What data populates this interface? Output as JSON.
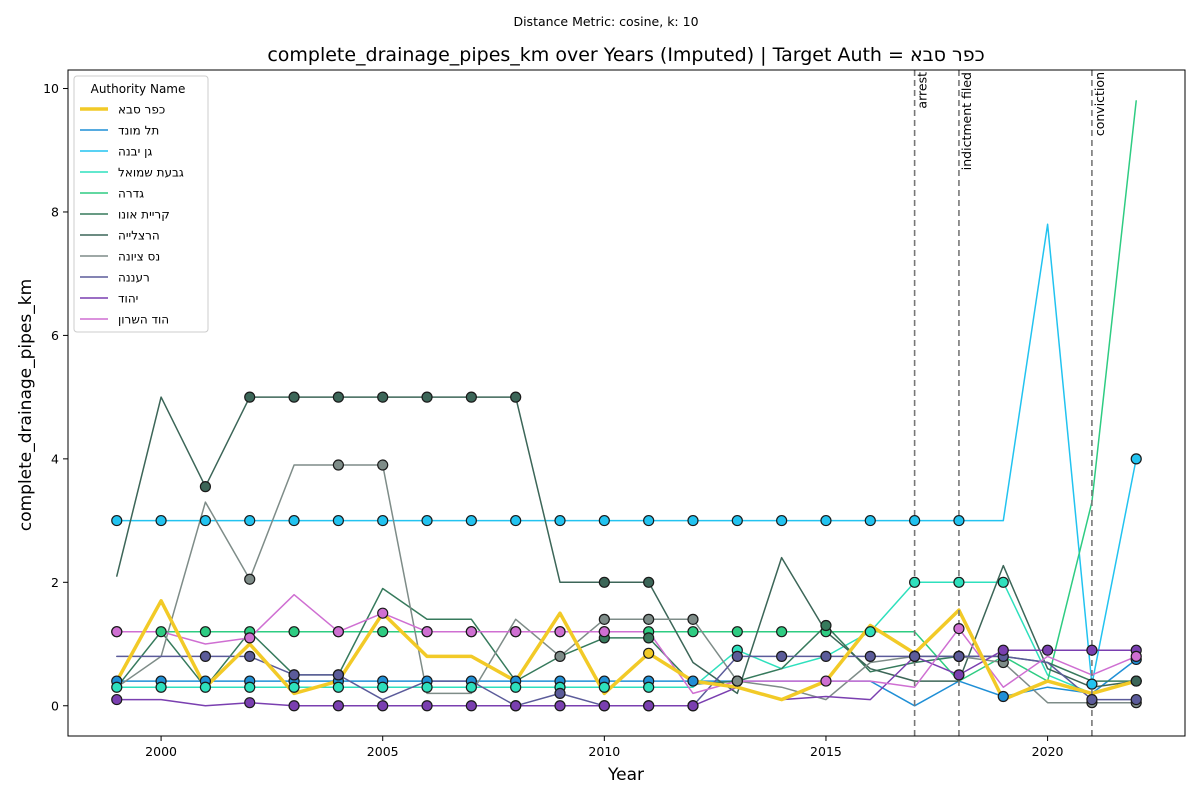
{
  "chart_data": {
    "type": "line",
    "suptitle": "Distance Metric: cosine, k: 10",
    "title": "complete_drainage_pipes_km over Years (Imputed) | Target Auth = כפר סבא",
    "xlabel": "Year",
    "ylabel": "complete_drainage_pipes_km",
    "xlim": [
      1997.9,
      2023.1
    ],
    "ylim": [
      -0.49,
      10.3
    ],
    "x_ticks": [
      2000,
      2005,
      2010,
      2015,
      2020
    ],
    "y_ticks": [
      0,
      2,
      4,
      6,
      8,
      10
    ],
    "grid": false,
    "legend": {
      "title": "Authority Name",
      "position": "top-left"
    },
    "x": [
      1999,
      2000,
      2001,
      2002,
      2003,
      2004,
      2005,
      2006,
      2007,
      2008,
      2009,
      2010,
      2011,
      2012,
      2013,
      2014,
      2015,
      2016,
      2017,
      2018,
      2019,
      2020,
      2021,
      2022
    ],
    "series": [
      {
        "name": "כפר סבא",
        "color": "#f2ca27",
        "width": 3.5,
        "target": true,
        "values": [
          0.4,
          1.7,
          0.3,
          1.0,
          0.2,
          0.4,
          1.5,
          0.8,
          0.8,
          0.4,
          1.5,
          0.2,
          0.85,
          0.4,
          0.3,
          0.1,
          0.4,
          1.3,
          0.85,
          1.55,
          0.1,
          0.4,
          0.2,
          0.4
        ],
        "imputed": [
          12
        ]
      },
      {
        "name": "תל מונד",
        "color": "#1f8fd6",
        "width": 1.5,
        "values": [
          0.4,
          0.4,
          0.4,
          0.4,
          0.4,
          0.4,
          0.4,
          0.4,
          0.4,
          0.4,
          0.4,
          0.4,
          0.4,
          0.4,
          0.4,
          0.4,
          0.4,
          0.4,
          0.0,
          0.4,
          0.15,
          0.3,
          0.2,
          0.75
        ],
        "imputed": [
          0,
          1,
          2,
          3,
          4,
          5,
          6,
          7,
          8,
          9,
          10,
          11,
          12,
          13,
          14,
          20,
          23
        ]
      },
      {
        "name": "גן יבנה",
        "color": "#22c3f0",
        "width": 1.5,
        "values": [
          3.0,
          3.0,
          3.0,
          3.0,
          3.0,
          3.0,
          3.0,
          3.0,
          3.0,
          3.0,
          3.0,
          3.0,
          3.0,
          3.0,
          3.0,
          3.0,
          3.0,
          3.0,
          3.0,
          3.0,
          3.0,
          7.8,
          0.35,
          4.0
        ],
        "imputed": [
          0,
          1,
          2,
          3,
          4,
          5,
          6,
          7,
          8,
          9,
          10,
          11,
          12,
          13,
          14,
          15,
          16,
          17,
          18,
          19,
          22,
          23
        ]
      },
      {
        "name": "גבעת שמואל",
        "color": "#2ee0bd",
        "width": 1.5,
        "values": [
          0.3,
          0.3,
          0.3,
          0.3,
          0.3,
          0.3,
          0.3,
          0.3,
          0.3,
          0.3,
          0.3,
          0.3,
          0.3,
          0.3,
          0.9,
          0.6,
          0.8,
          1.2,
          2.0,
          2.0,
          2.0,
          0.5,
          0.2,
          0.4
        ],
        "imputed": [
          0,
          1,
          2,
          3,
          4,
          5,
          6,
          7,
          8,
          9,
          10,
          11,
          12,
          14,
          17,
          18,
          19,
          20
        ]
      },
      {
        "name": "גדרה",
        "color": "#2ecc82",
        "width": 1.5,
        "values": [
          1.2,
          1.2,
          1.2,
          1.2,
          1.2,
          1.2,
          1.2,
          1.2,
          1.2,
          1.2,
          1.2,
          1.2,
          1.2,
          1.2,
          1.2,
          1.2,
          1.2,
          1.2,
          1.2,
          0.4,
          0.8,
          0.4,
          3.3,
          9.8
        ],
        "imputed": [
          0,
          1,
          2,
          3,
          4,
          5,
          6,
          7,
          8,
          9,
          10,
          11,
          12,
          13,
          14,
          15,
          16
        ]
      },
      {
        "name": "קריית אונו",
        "color": "#367a5c",
        "width": 1.5,
        "values": [
          0.3,
          1.2,
          0.3,
          1.2,
          0.5,
          0.5,
          1.9,
          1.4,
          1.4,
          0.4,
          0.8,
          1.1,
          1.1,
          0.35,
          0.4,
          0.6,
          1.3,
          0.55,
          0.7,
          0.8,
          0.8,
          0.7,
          0.4,
          0.4
        ],
        "imputed": [
          4,
          5,
          11,
          12,
          14,
          16,
          19,
          23
        ]
      },
      {
        "name": "הרצלייה",
        "color": "#3c6658",
        "width": 1.5,
        "values": [
          2.1,
          5.0,
          3.55,
          5.0,
          5.0,
          5.0,
          5.0,
          5.0,
          5.0,
          5.0,
          2.0,
          2.0,
          2.0,
          0.7,
          0.2,
          2.4,
          1.2,
          0.6,
          0.4,
          0.4,
          2.27,
          0.6,
          0.3,
          0.4
        ],
        "imputed": [
          2,
          3,
          4,
          5,
          6,
          7,
          8,
          9,
          11,
          12,
          23
        ]
      },
      {
        "name": "נס ציונה",
        "color": "#7e8c88",
        "width": 1.5,
        "values": [
          0.3,
          0.8,
          3.3,
          2.05,
          3.9,
          3.9,
          3.9,
          0.2,
          0.2,
          1.4,
          0.8,
          1.4,
          1.4,
          1.4,
          0.4,
          0.3,
          0.1,
          0.7,
          0.8,
          0.8,
          0.7,
          0.05,
          0.05,
          0.05
        ],
        "imputed": [
          3,
          5,
          6,
          10,
          11,
          12,
          13,
          14,
          18,
          19,
          20,
          22,
          23
        ]
      },
      {
        "name": "רעננה",
        "color": "#5b5b9a",
        "width": 1.5,
        "values": [
          0.8,
          0.8,
          0.8,
          0.8,
          0.5,
          0.5,
          0.1,
          0.4,
          0.4,
          0.0,
          0.2,
          0.0,
          0.0,
          0.0,
          0.8,
          0.8,
          0.8,
          0.8,
          0.8,
          0.8,
          0.8,
          0.7,
          0.1,
          0.1
        ],
        "imputed": [
          2,
          3,
          4,
          5,
          9,
          10,
          11,
          12,
          13,
          14,
          15,
          16,
          17,
          18,
          19,
          20,
          22,
          23
        ]
      },
      {
        "name": "יהוד",
        "color": "#7a3fb0",
        "width": 1.5,
        "values": [
          0.1,
          0.1,
          0.0,
          0.05,
          0.0,
          0.0,
          0.0,
          0.0,
          0.0,
          0.0,
          0.0,
          0.0,
          0.0,
          0.0,
          0.3,
          0.1,
          0.15,
          0.1,
          0.8,
          0.5,
          0.9,
          0.9,
          0.9,
          0.9
        ],
        "imputed": [
          0,
          3,
          4,
          5,
          6,
          7,
          8,
          9,
          10,
          11,
          12,
          13,
          19,
          20,
          21,
          22,
          23
        ]
      },
      {
        "name": "הוד השרון",
        "color": "#cf6fd2",
        "width": 1.5,
        "values": [
          1.2,
          1.2,
          1.0,
          1.1,
          1.8,
          1.2,
          1.5,
          1.2,
          1.2,
          1.2,
          1.2,
          1.2,
          1.2,
          0.2,
          0.4,
          0.4,
          0.4,
          0.4,
          0.3,
          1.25,
          0.3,
          0.8,
          0.5,
          0.8
        ],
        "imputed": [
          0,
          3,
          5,
          6,
          7,
          8,
          9,
          10,
          11,
          16,
          19,
          23
        ]
      }
    ],
    "events": [
      {
        "label": "arrest",
        "x": 2017
      },
      {
        "label": "indictment filed",
        "x": 2018
      },
      {
        "label": "conviction",
        "x": 2021
      }
    ]
  }
}
